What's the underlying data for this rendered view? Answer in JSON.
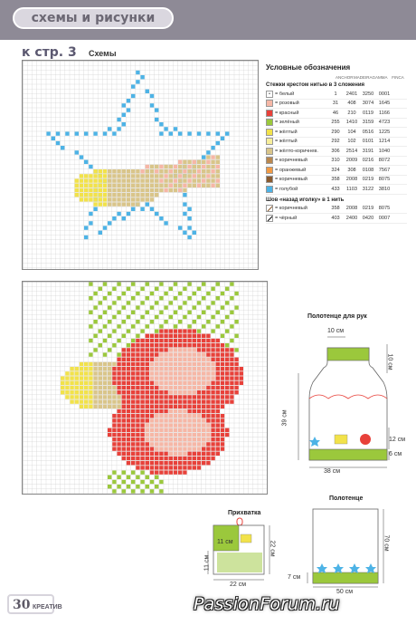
{
  "header": {
    "section_title": "схемы и рисунки"
  },
  "page_ref": {
    "label": "к стр. 3",
    "sub": "Схемы"
  },
  "legend": {
    "title": "Условные обозначения",
    "columns": [
      "ANCHOR",
      "MADEIRA",
      "GAMMA",
      "FINCA"
    ],
    "cross_section": "Стежки крестом нитью в 3 сложения",
    "cross_items": [
      {
        "name": "= белый",
        "color": "#ffffff",
        "mark": "•",
        "anchor": "1",
        "madeira": "2401",
        "gamma": "3250",
        "finca": "0001"
      },
      {
        "name": "= розовый",
        "color": "#f6b7a6",
        "mark": "",
        "anchor": "31",
        "madeira": "408",
        "gamma": "3074",
        "finca": "1645"
      },
      {
        "name": "= красный",
        "color": "#e8413a",
        "mark": "",
        "anchor": "46",
        "madeira": "210",
        "gamma": "0119",
        "finca": "1166"
      },
      {
        "name": "= зелёный",
        "color": "#9bc83c",
        "mark": "",
        "anchor": "255",
        "madeira": "1410",
        "gamma": "3159",
        "finca": "4723"
      },
      {
        "name": "= жёлтый",
        "color": "#f2e24a",
        "mark": "",
        "anchor": "290",
        "madeira": "104",
        "gamma": "0516",
        "finca": "1225"
      },
      {
        "name": "= жёлтый",
        "color": "#f7ee9a",
        "mark": "",
        "anchor": "292",
        "madeira": "102",
        "gamma": "0101",
        "finca": "1214"
      },
      {
        "name": "= жёлто-коричнев.",
        "color": "#d9c58a",
        "mark": "",
        "anchor": "306",
        "madeira": "2514",
        "gamma": "3191",
        "finca": "1040"
      },
      {
        "name": "= коричневый",
        "color": "#b9874e",
        "mark": "",
        "anchor": "310",
        "madeira": "2009",
        "gamma": "0216",
        "finca": "8072"
      },
      {
        "name": "= оранжевый",
        "color": "#f19a44",
        "mark": "",
        "anchor": "324",
        "madeira": "308",
        "gamma": "0108",
        "finca": "7567"
      },
      {
        "name": "= коричневый",
        "color": "#8a5a2e",
        "mark": "",
        "anchor": "358",
        "madeira": "2008",
        "gamma": "0219",
        "finca": "8075"
      },
      {
        "name": "= голубой",
        "color": "#4db3e6",
        "mark": "",
        "anchor": "433",
        "madeira": "1103",
        "gamma": "3122",
        "finca": "3810"
      }
    ],
    "back_section": "Шов «назад иголку» в 1 нить",
    "back_items": [
      {
        "name": "= коричневый",
        "color": "#8a5a2e",
        "anchor": "358",
        "madeira": "2008",
        "gamma": "0219",
        "finca": "8075"
      },
      {
        "name": "= чёрный",
        "color": "#111111",
        "anchor": "403",
        "madeira": "2400",
        "gamma": "0420",
        "finca": "0007"
      }
    ]
  },
  "towel": {
    "title": "Полотенце для рук",
    "dims": {
      "top": "10 см",
      "hang": "10 см",
      "height": "39 см",
      "width": "38 см",
      "band": "12 см",
      "bottom": "6 см"
    }
  },
  "potholder": {
    "title": "Прихватка",
    "dims": {
      "inner": "11 см",
      "left": "11 см",
      "right": "22 см",
      "bottom": "22 см"
    }
  },
  "big_towel": {
    "title": "Полотенце",
    "dims": {
      "height": "70 см",
      "band": "7 см",
      "width": "50 см"
    }
  },
  "footer": {
    "page_number": "30",
    "brand": "КРЕАТИВ",
    "watermark": "PassionForum.ru"
  },
  "colors": {
    "blue": "#4db3e6",
    "yellow": "#f2e24a",
    "beige": "#d9c58a",
    "red": "#e8413a",
    "pink": "#f6b7a6",
    "green": "#9bc83c",
    "grid": "#c9c9c9"
  }
}
